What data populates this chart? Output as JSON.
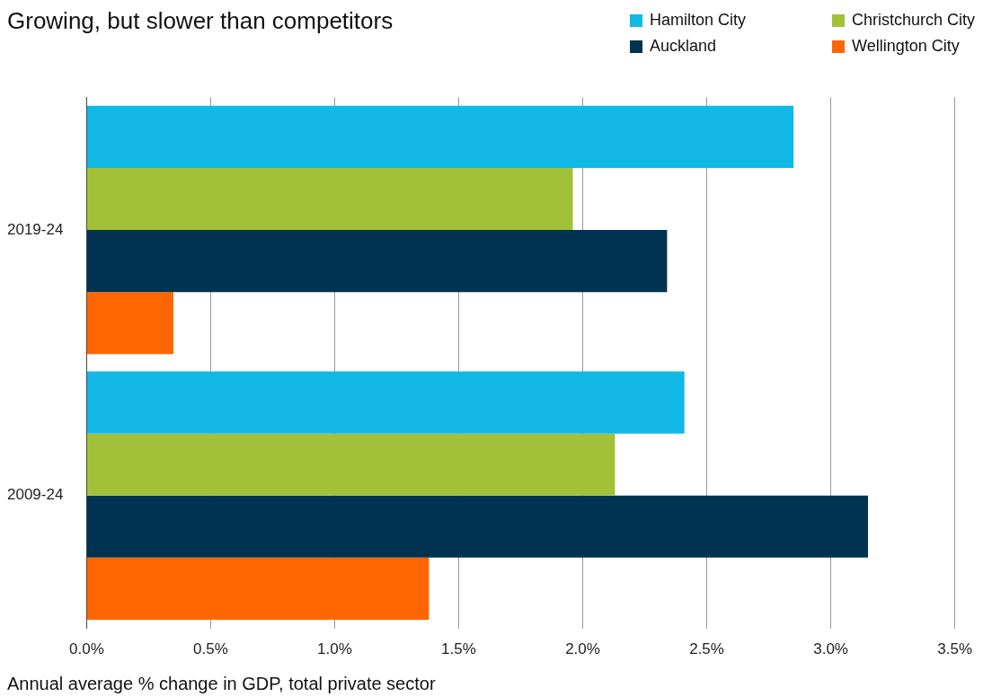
{
  "chart_data": {
    "type": "bar",
    "orientation": "horizontal",
    "title": "Growing, but slower than competitors",
    "xlabel": "Annual average % change in GDP, total private sector",
    "categories": [
      "2019-24",
      "2009-24"
    ],
    "series": [
      {
        "name": "Hamilton City",
        "color": "#12b8e6",
        "values": [
          2.85,
          2.41
        ]
      },
      {
        "name": "Christchurch City",
        "color": "#a2c138",
        "values": [
          1.96,
          2.13
        ]
      },
      {
        "name": "Auckland",
        "color": "#003352",
        "values": [
          2.34,
          3.15
        ]
      },
      {
        "name": "Wellington City",
        "color": "#ff6600",
        "values": [
          0.35,
          1.38
        ]
      }
    ],
    "xlim": [
      0,
      3.5
    ],
    "xticks": [
      {
        "value": 0,
        "label": "0.0%"
      },
      {
        "value": 0.5,
        "label": "0.5%"
      },
      {
        "value": 1,
        "label": "1.0%"
      },
      {
        "value": 1.5,
        "label": "1.5%"
      },
      {
        "value": 2,
        "label": "2.0%"
      },
      {
        "value": 2.5,
        "label": "2.5%"
      },
      {
        "value": 3,
        "label": "3.0%"
      },
      {
        "value": 3.5,
        "label": "3.5%"
      }
    ],
    "grid": "x",
    "legend": "top right"
  }
}
